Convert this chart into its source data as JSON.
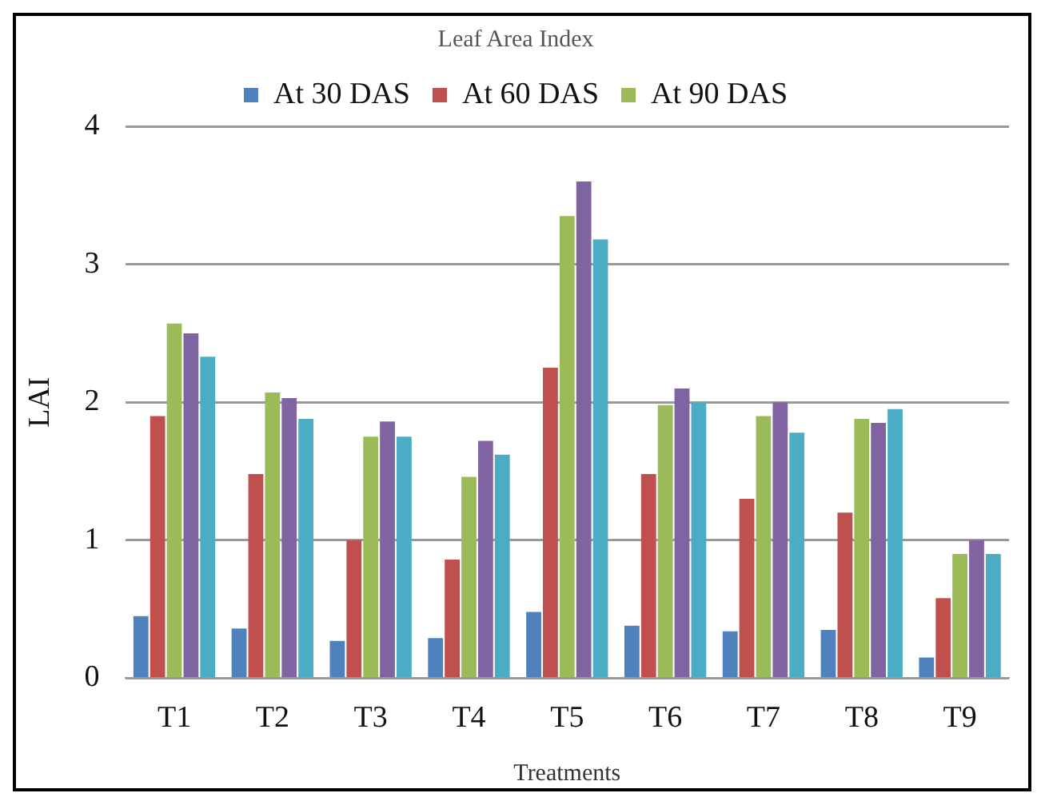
{
  "chart_data": {
    "type": "bar",
    "title": "Leaf Area Index",
    "xlabel": "Treatments",
    "ylabel": "LAI",
    "categories": [
      "T1",
      "T2",
      "T3",
      "T4",
      "T5",
      "T6",
      "T7",
      "T8",
      "T9"
    ],
    "series": [
      {
        "name": "At 30 DAS",
        "color": "#4f81bd",
        "values": [
          0.45,
          0.36,
          0.27,
          0.29,
          0.48,
          0.38,
          0.34,
          0.35,
          0.15
        ]
      },
      {
        "name": "At 60 DAS",
        "color": "#c0504d",
        "values": [
          1.9,
          1.48,
          1.0,
          0.86,
          2.25,
          1.48,
          1.3,
          1.2,
          0.58
        ]
      },
      {
        "name": "At 90 DAS",
        "color": "#9bbb59",
        "values": [
          2.57,
          2.07,
          1.75,
          1.46,
          3.35,
          1.98,
          1.9,
          1.88,
          0.9
        ]
      },
      {
        "color": "#8064a2",
        "values": [
          2.5,
          2.03,
          1.86,
          1.72,
          3.6,
          2.1,
          2.0,
          1.85,
          1.0
        ]
      },
      {
        "color": "#4bacc6",
        "values": [
          2.33,
          1.88,
          1.75,
          1.62,
          3.18,
          2.0,
          1.78,
          1.95,
          0.9
        ]
      }
    ],
    "ylim": [
      0,
      4
    ],
    "yticks": [
      0,
      1,
      2,
      3,
      4
    ],
    "grid": "y",
    "legend": "top"
  }
}
